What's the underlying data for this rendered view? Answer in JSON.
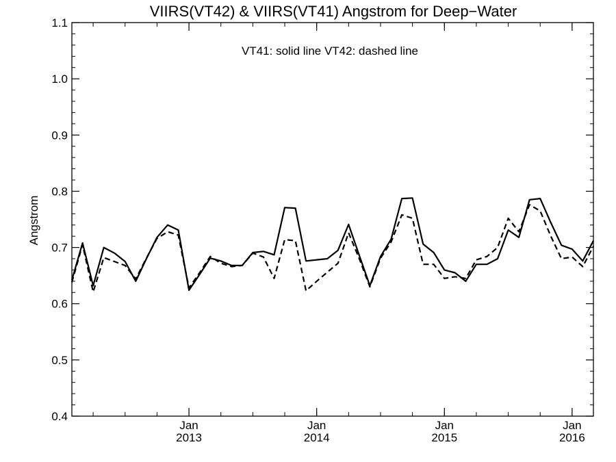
{
  "chart_data": {
    "type": "line",
    "title": "VIIRS(VT42) & VIIRS(VT41)  Angstrom for Deep−Water",
    "annotation": "VT41: solid line   VT42: dashed line",
    "xlabel": "",
    "ylabel": "Angstrom",
    "ylim": [
      0.4,
      1.1
    ],
    "yticks": [
      "0.4",
      "0.5",
      "0.6",
      "0.7",
      "0.8",
      "0.9",
      "1.0",
      "1.1"
    ],
    "xlim": [
      "2012-02",
      "2016-03"
    ],
    "xticks": [
      {
        "month": "Jan",
        "year": "2013",
        "date": "2013-01"
      },
      {
        "month": "Jan",
        "year": "2014",
        "date": "2014-01"
      },
      {
        "month": "Jan",
        "year": "2015",
        "date": "2015-01"
      },
      {
        "month": "Jan",
        "year": "2016",
        "date": "2016-01"
      }
    ],
    "x": [
      "2012-02",
      "2012-03",
      "2012-04",
      "2012-05",
      "2012-06",
      "2012-07",
      "2012-08",
      "2012-09",
      "2012-10",
      "2012-11",
      "2012-12",
      "2013-01",
      "2013-02",
      "2013-03",
      "2013-04",
      "2013-05",
      "2013-06",
      "2013-07",
      "2013-08",
      "2013-09",
      "2013-10",
      "2013-11",
      "2013-12",
      "2014-01",
      "2014-02",
      "2014-03",
      "2014-04",
      "2014-05",
      "2014-06",
      "2014-07",
      "2014-08",
      "2014-09",
      "2014-10",
      "2014-11",
      "2014-12",
      "2015-01",
      "2015-02",
      "2015-03",
      "2015-04",
      "2015-05",
      "2015-06",
      "2015-07",
      "2015-08",
      "2015-09",
      "2015-10",
      "2015-11",
      "2015-12",
      "2016-01",
      "2016-02",
      "2016-03"
    ],
    "series": [
      {
        "name": "VT41",
        "style": "solid",
        "color": "#000000",
        "values": [
          0.642,
          0.708,
          0.632,
          0.7,
          0.69,
          0.675,
          0.64,
          0.68,
          0.718,
          0.74,
          0.731,
          0.624,
          0.652,
          0.681,
          0.676,
          0.668,
          0.668,
          0.691,
          0.693,
          0.687,
          0.771,
          0.77,
          0.676,
          0.678,
          0.68,
          0.695,
          0.741,
          0.686,
          0.632,
          0.684,
          0.715,
          0.787,
          0.788,
          0.706,
          0.691,
          0.66,
          0.655,
          0.64,
          0.67,
          0.67,
          0.68,
          0.731,
          0.718,
          0.785,
          0.787,
          0.744,
          0.704,
          0.697,
          0.676,
          0.712
        ]
      },
      {
        "name": "VT42",
        "style": "dashed",
        "color": "#000000",
        "values": [
          0.638,
          0.705,
          0.621,
          0.682,
          0.675,
          0.668,
          0.644,
          0.681,
          0.716,
          0.728,
          0.722,
          0.628,
          0.655,
          0.684,
          0.672,
          0.666,
          0.668,
          0.69,
          0.683,
          0.645,
          0.714,
          0.712,
          0.623,
          0.64,
          0.656,
          0.672,
          0.726,
          0.68,
          0.63,
          0.681,
          0.71,
          0.758,
          0.752,
          0.67,
          0.67,
          0.645,
          0.648,
          0.645,
          0.678,
          0.684,
          0.7,
          0.752,
          0.728,
          0.776,
          0.765,
          0.72,
          0.68,
          0.683,
          0.666,
          0.702
        ]
      }
    ]
  }
}
